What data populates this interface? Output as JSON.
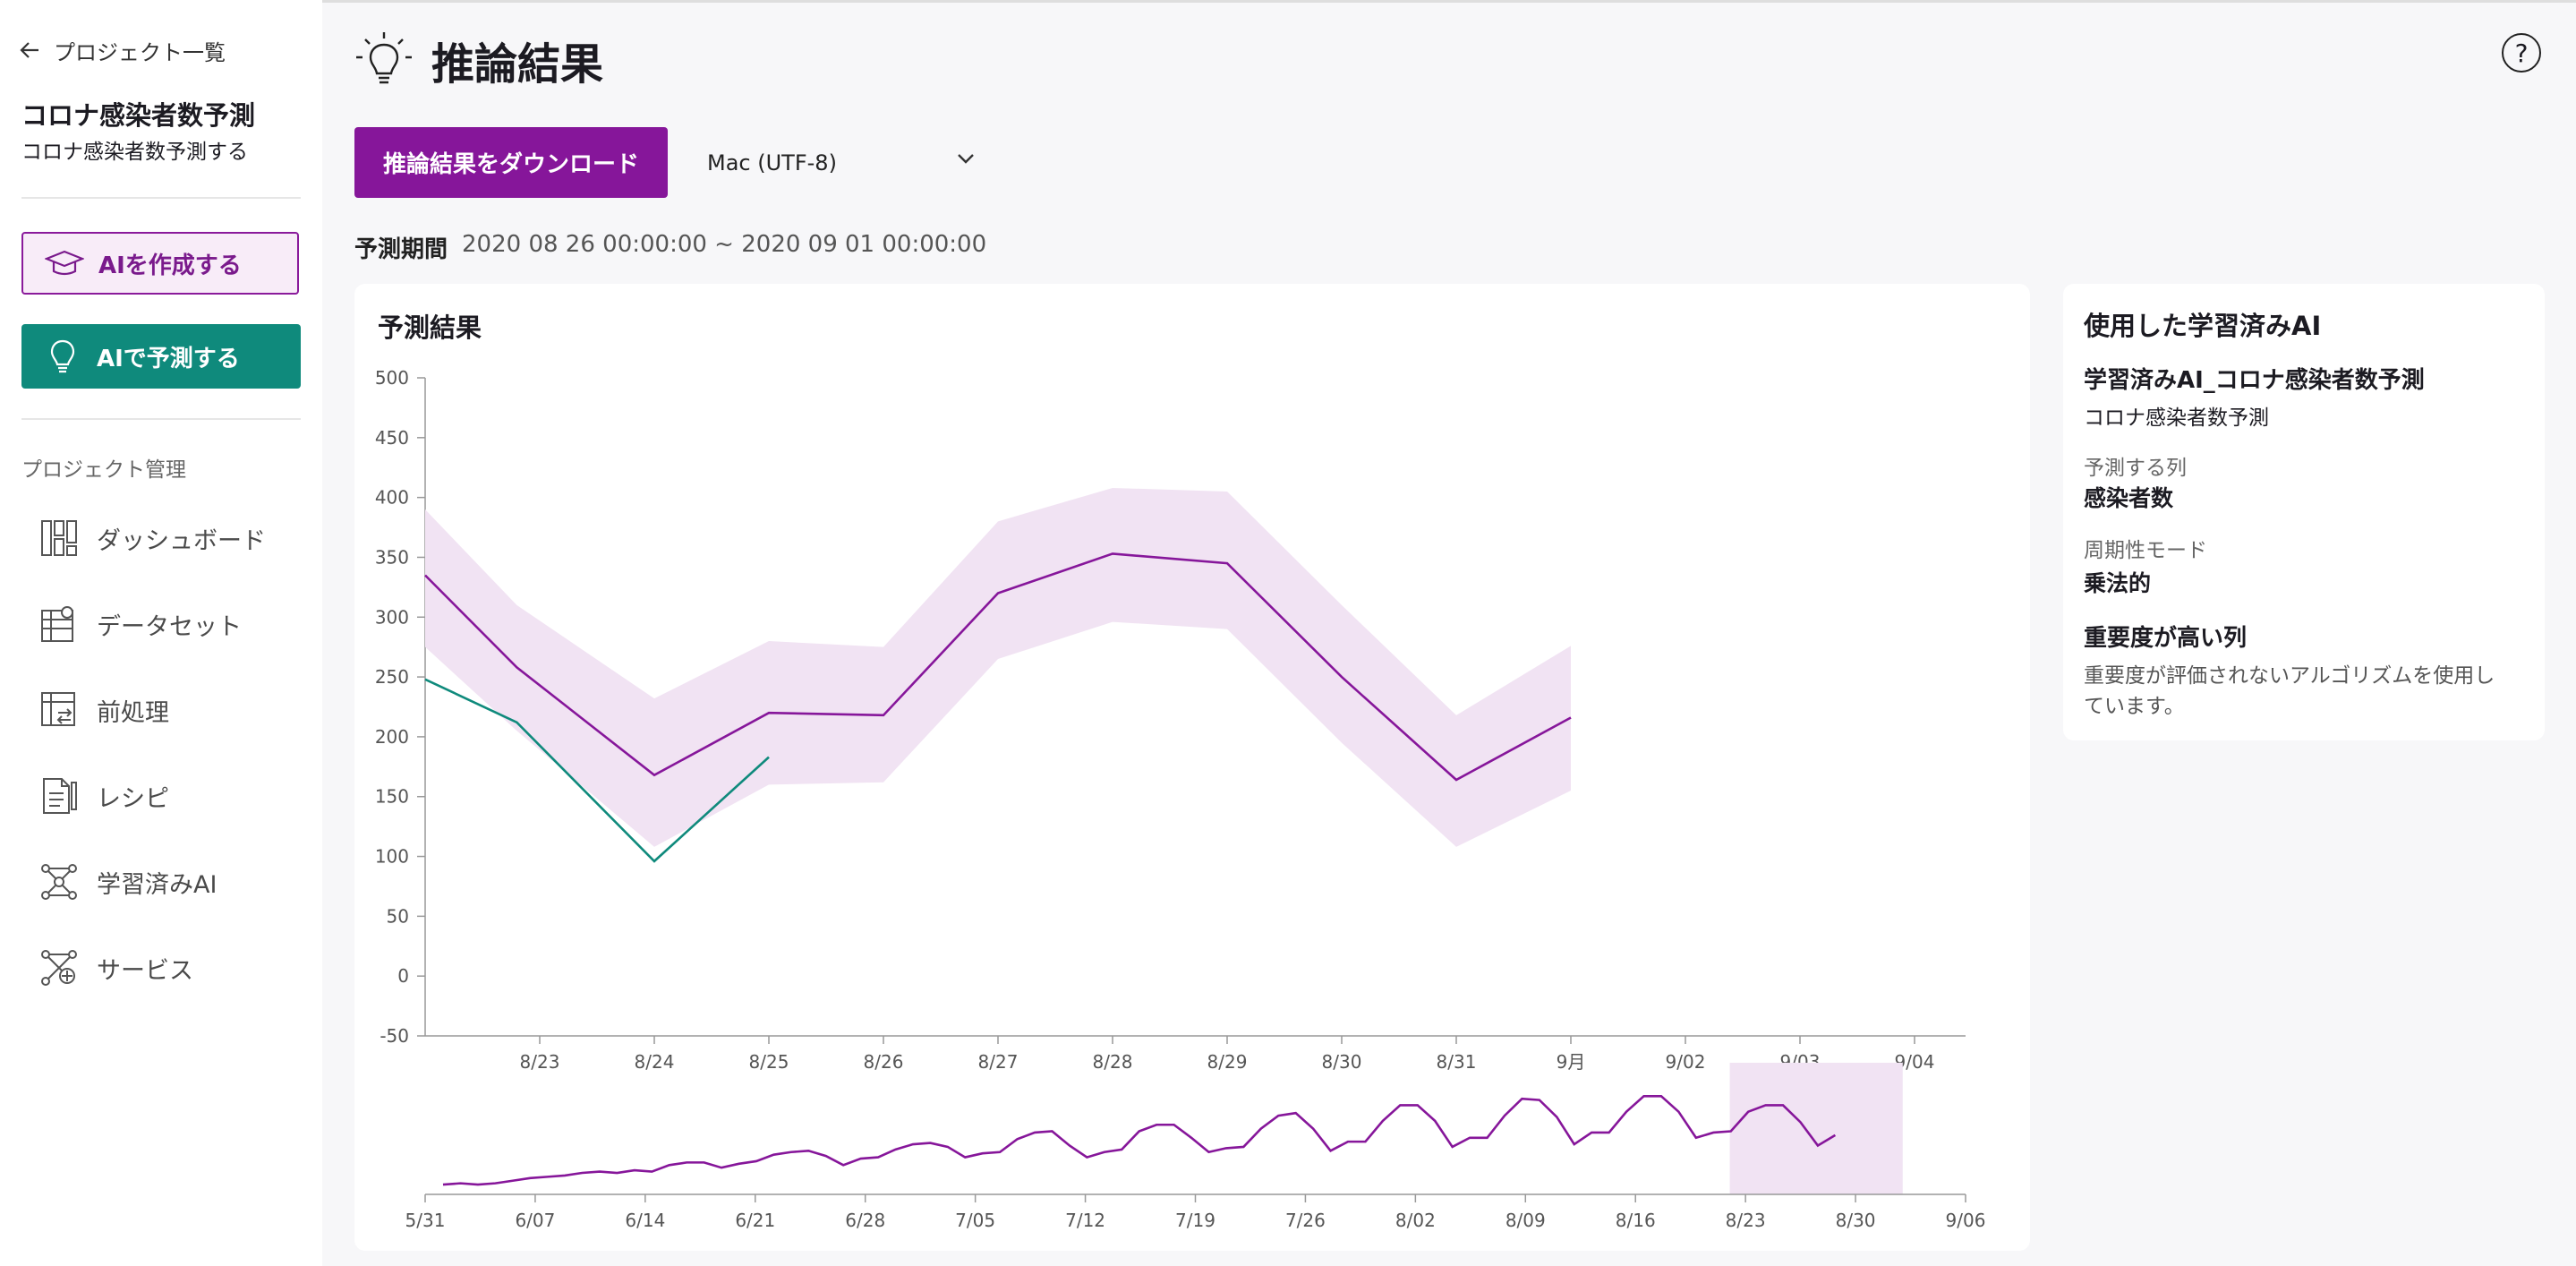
{
  "sidebar": {
    "back_label": "プロジェクト一覧",
    "project_title": "コロナ感染者数予測",
    "project_subtitle": "コロナ感染者数予測する",
    "create_ai_label": "AIを作成する",
    "predict_ai_label": "AIで予測する",
    "section_label": "プロジェクト管理",
    "items": [
      {
        "label": "ダッシュボード",
        "icon": "dashboard-icon"
      },
      {
        "label": "データセット",
        "icon": "dataset-icon"
      },
      {
        "label": "前処理",
        "icon": "preprocess-icon"
      },
      {
        "label": "レシピ",
        "icon": "recipe-icon"
      },
      {
        "label": "学習済みAI",
        "icon": "trained-ai-icon"
      },
      {
        "label": "サービス",
        "icon": "service-icon"
      }
    ]
  },
  "header": {
    "title": "推論結果",
    "download_label": "推論結果をダウンロード",
    "encoding_value": "Mac (UTF-8)",
    "period_label": "予測期間",
    "period_value": "2020 08 26 00:00:00 ~ 2020 09 01 00:00:00"
  },
  "chart_card": {
    "title": "予測結果"
  },
  "info": {
    "title": "使用した学習済みAI",
    "model_name": "学習済みAI_コロナ感染者数予測",
    "model_desc": "コロナ感染者数予測",
    "target_label": "予測する列",
    "target_value": "感染者数",
    "season_label": "周期性モード",
    "season_value": "乗法的",
    "importance_label": "重要度が高い列",
    "importance_desc_1": "重要度が評価されないアルゴリズムを使用し",
    "importance_desc_2": "ています。"
  },
  "colors": {
    "accent": "#86169a",
    "teal": "#0f8a7c",
    "band": "#f1e3f3"
  },
  "chart_data": [
    {
      "type": "line",
      "x_ticks": [
        "8/23",
        "8/24",
        "8/25",
        "8/26",
        "8/27",
        "8/28",
        "8/29",
        "8/30",
        "8/31",
        "9月",
        "9/02",
        "9/03",
        "9/04"
      ],
      "ylim": [
        -50,
        500
      ],
      "y_ticks": [
        -50,
        0,
        50,
        100,
        150,
        200,
        250,
        300,
        350,
        400,
        450,
        500
      ],
      "series": [
        {
          "x": [
            22.0,
            22.8,
            24.0,
            25.0,
            26.0,
            27.0,
            28.0,
            29.0,
            30.0,
            31.0,
            32.0
          ],
          "values": [
            335,
            258,
            168,
            220,
            218,
            320,
            353,
            345,
            250,
            164,
            216
          ],
          "upper": [
            390,
            310,
            232,
            280,
            275,
            380,
            408,
            405,
            310,
            218,
            276
          ],
          "lower": [
            275,
            205,
            108,
            160,
            162,
            265,
            296,
            290,
            195,
            108,
            155
          ]
        },
        {
          "x": [
            22.0,
            22.8,
            24.0,
            25.0
          ],
          "values": [
            248,
            212,
            96,
            183
          ]
        }
      ]
    },
    {
      "type": "line",
      "x_ticks": [
        "5/31",
        "6/07",
        "6/14",
        "6/21",
        "6/28",
        "7/05",
        "7/12",
        "7/19",
        "7/26",
        "8/02",
        "8/09",
        "8/16",
        "8/23",
        "8/30",
        "9/06"
      ],
      "values": [
        2,
        3,
        2,
        3,
        5,
        7,
        8,
        9,
        11,
        12,
        11,
        13,
        12,
        17,
        19,
        19,
        15,
        18,
        20,
        25,
        27,
        28,
        24,
        17,
        22,
        23,
        29,
        33,
        34,
        31,
        23,
        26,
        27,
        37,
        42,
        43,
        32,
        23,
        27,
        29,
        43,
        48,
        48,
        38,
        27,
        30,
        31,
        45,
        55,
        57,
        45,
        28,
        35,
        35,
        51,
        63,
        63,
        51,
        31,
        38,
        38,
        55,
        68,
        67,
        54,
        33,
        42,
        42,
        58,
        70,
        70,
        58,
        38,
        42,
        43,
        58,
        63,
        63,
        50,
        32,
        40
      ],
      "selected_range": [
        "8/22",
        "9/02"
      ]
    }
  ]
}
